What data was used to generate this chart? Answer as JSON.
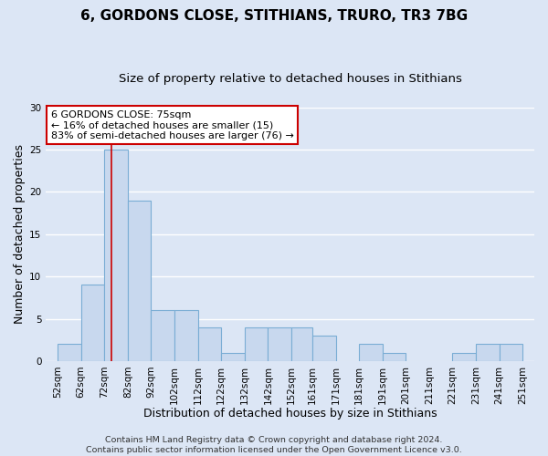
{
  "title1": "6, GORDONS CLOSE, STITHIANS, TRURO, TR3 7BG",
  "title2": "Size of property relative to detached houses in Stithians",
  "xlabel": "Distribution of detached houses by size in Stithians",
  "ylabel": "Number of detached properties",
  "bar_left_edges": [
    52,
    62,
    72,
    82,
    92,
    102,
    112,
    122,
    132,
    142,
    152,
    161,
    171,
    181,
    191,
    201,
    211,
    221,
    231,
    241
  ],
  "bar_widths": [
    10,
    10,
    10,
    10,
    10,
    10,
    10,
    10,
    10,
    10,
    9,
    10,
    10,
    10,
    10,
    10,
    10,
    10,
    10,
    10
  ],
  "bar_heights": [
    2,
    9,
    25,
    19,
    6,
    6,
    4,
    1,
    4,
    4,
    4,
    3,
    0,
    2,
    1,
    0,
    0,
    1,
    2,
    2
  ],
  "bar_color": "#c8d8ee",
  "bar_edgecolor": "#7aadd4",
  "vline_x": 75,
  "vline_color": "#cc0000",
  "ylim": [
    0,
    30
  ],
  "yticks": [
    0,
    5,
    10,
    15,
    20,
    25,
    30
  ],
  "xlim": [
    47,
    256
  ],
  "xtick_labels": [
    "52sqm",
    "62sqm",
    "72sqm",
    "82sqm",
    "92sqm",
    "102sqm",
    "112sqm",
    "122sqm",
    "132sqm",
    "142sqm",
    "152sqm",
    "161sqm",
    "171sqm",
    "181sqm",
    "191sqm",
    "201sqm",
    "211sqm",
    "221sqm",
    "231sqm",
    "241sqm",
    "251sqm"
  ],
  "xtick_positions": [
    52,
    62,
    72,
    82,
    92,
    102,
    112,
    122,
    132,
    142,
    152,
    161,
    171,
    181,
    191,
    201,
    211,
    221,
    231,
    241,
    251
  ],
  "annotation_box_text": "6 GORDONS CLOSE: 75sqm\n← 16% of detached houses are smaller (15)\n83% of semi-detached houses are larger (76) →",
  "footer1": "Contains HM Land Registry data © Crown copyright and database right 2024.",
  "footer2": "Contains public sector information licensed under the Open Government Licence v3.0.",
  "background_color": "#dce6f5",
  "plot_background": "#dce6f5",
  "grid_color": "#ffffff",
  "title_fontsize": 11,
  "subtitle_fontsize": 9.5,
  "axis_label_fontsize": 9,
  "tick_fontsize": 7.5,
  "footer_fontsize": 6.8,
  "annot_fontsize": 8.0
}
